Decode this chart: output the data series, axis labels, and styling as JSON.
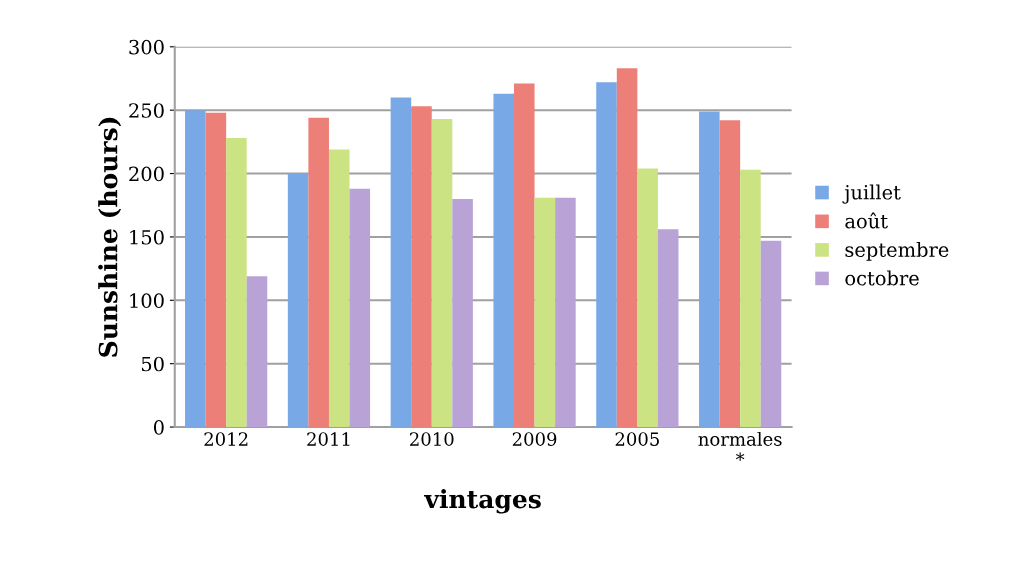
{
  "chart_data": {
    "type": "bar",
    "xlabel": "vintages",
    "ylabel": "Sunshine (hours)",
    "categories": [
      "2012",
      "2011",
      "2010",
      "2009",
      "2005",
      "normales\n*"
    ],
    "series": [
      {
        "name": "juillet",
        "color": "#78a9e6",
        "values": [
          250,
          200,
          260,
          263,
          272,
          249
        ]
      },
      {
        "name": "août",
        "color": "#ec7f77",
        "values": [
          248,
          244,
          253,
          271,
          283,
          242
        ]
      },
      {
        "name": "septembre",
        "color": "#cbe383",
        "values": [
          228,
          219,
          243,
          181,
          204,
          203
        ]
      },
      {
        "name": "octobre",
        "color": "#b8a2d6",
        "values": [
          119,
          188,
          180,
          181,
          156,
          147
        ]
      }
    ],
    "ylim": [
      0,
      300
    ],
    "yticks": [
      0,
      50,
      100,
      150,
      200,
      250,
      300
    ],
    "grid": "y",
    "legend": "right"
  }
}
